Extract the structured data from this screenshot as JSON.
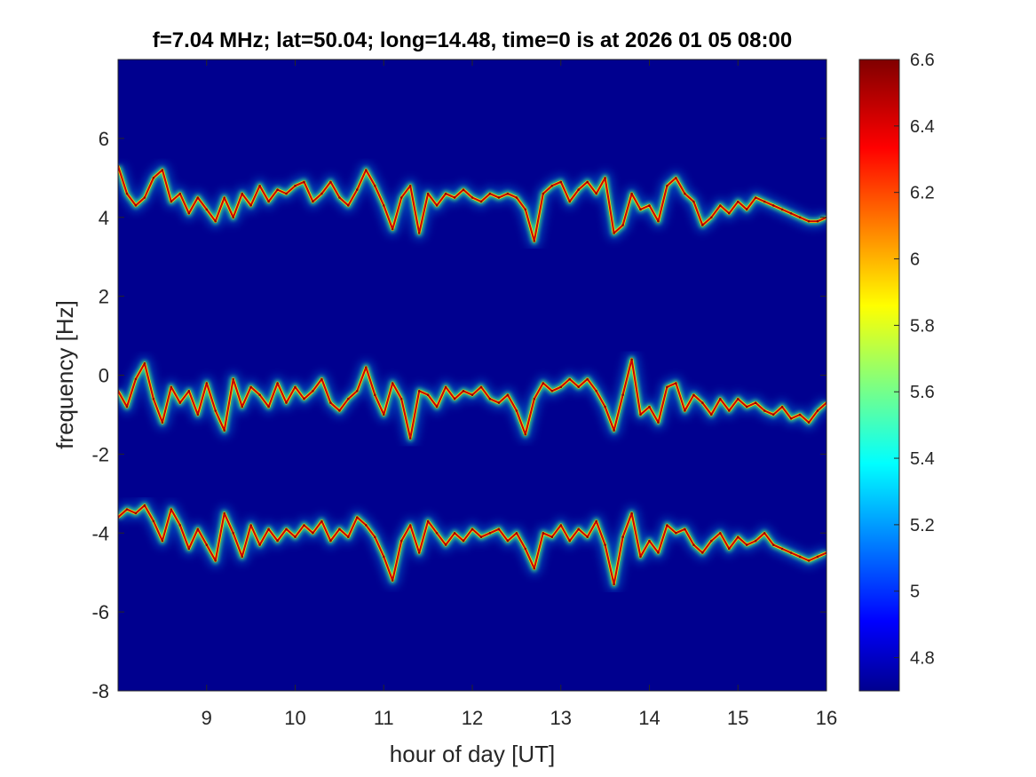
{
  "chart_data": {
    "type": "heatmap",
    "title": "f=7.04 MHz;  lat=50.04; long=14.48, time=0 is at 2026 01 05 08:00",
    "xlabel": "hour of day [UT]",
    "ylabel": "frequency [Hz]",
    "xlim": [
      8,
      16
    ],
    "ylim": [
      -8,
      8
    ],
    "x_ticks": [
      9,
      10,
      11,
      12,
      13,
      14,
      15,
      16
    ],
    "y_ticks": [
      -8,
      -6,
      -4,
      -2,
      0,
      2,
      4,
      6
    ],
    "colormap": "jet",
    "background_color": "#00008f",
    "grid": false,
    "colorbar": {
      "range": [
        4.7,
        6.6
      ],
      "ticks": [
        4.8,
        5,
        5.2,
        5.4,
        5.6,
        5.8,
        6,
        6.2,
        6.4,
        6.6
      ],
      "tick_labels": [
        "4.8",
        "5",
        "5.2",
        "5.4",
        "5.6",
        "5.8",
        "6",
        "6.2",
        "6.4",
        "6.6"
      ]
    },
    "series": [
      {
        "x": [
          8.0,
          8.1,
          8.2,
          8.3,
          8.4,
          8.5,
          8.6,
          8.7,
          8.8,
          8.9,
          9.0,
          9.1,
          9.2,
          9.3,
          9.4,
          9.5,
          9.6,
          9.7,
          9.8,
          9.9,
          10.0,
          10.1,
          10.2,
          10.3,
          10.4,
          10.5,
          10.6,
          10.7,
          10.8,
          10.9,
          11.0,
          11.1,
          11.2,
          11.3,
          11.4,
          11.5,
          11.6,
          11.7,
          11.8,
          11.9,
          12.0,
          12.1,
          12.2,
          12.3,
          12.4,
          12.5,
          12.6,
          12.7,
          12.8,
          12.9,
          13.0,
          13.1,
          13.2,
          13.3,
          13.4,
          13.5,
          13.6,
          13.7,
          13.8,
          13.9,
          14.0,
          14.1,
          14.2,
          14.3,
          14.4,
          14.5,
          14.6,
          14.7,
          14.8,
          14.9,
          15.0,
          15.1,
          15.2,
          15.3,
          15.4,
          15.5,
          15.6,
          15.7,
          15.8,
          15.9,
          16.0
        ],
        "y": [
          5.3,
          4.6,
          4.3,
          4.5,
          5.0,
          5.2,
          4.4,
          4.6,
          4.1,
          4.5,
          4.2,
          3.9,
          4.5,
          4.0,
          4.6,
          4.3,
          4.8,
          4.4,
          4.7,
          4.6,
          4.8,
          4.9,
          4.4,
          4.6,
          4.9,
          4.5,
          4.3,
          4.7,
          5.2,
          4.8,
          4.3,
          3.7,
          4.5,
          4.8,
          3.6,
          4.6,
          4.3,
          4.6,
          4.5,
          4.7,
          4.5,
          4.4,
          4.6,
          4.5,
          4.6,
          4.5,
          4.2,
          3.4,
          4.6,
          4.8,
          4.9,
          4.4,
          4.7,
          4.9,
          4.6,
          5.0,
          3.6,
          3.8,
          4.6,
          4.2,
          4.3,
          3.9,
          4.8,
          5.0,
          4.6,
          4.4,
          3.8,
          4.0,
          4.3,
          4.1,
          4.4,
          4.2,
          4.5,
          4.4,
          4.3,
          4.2,
          4.1,
          4.0,
          3.9,
          3.9,
          4.0
        ]
      },
      {
        "x": [
          8.0,
          8.1,
          8.2,
          8.3,
          8.4,
          8.5,
          8.6,
          8.7,
          8.8,
          8.9,
          9.0,
          9.1,
          9.2,
          9.3,
          9.4,
          9.5,
          9.6,
          9.7,
          9.8,
          9.9,
          10.0,
          10.1,
          10.2,
          10.3,
          10.4,
          10.5,
          10.6,
          10.7,
          10.8,
          10.9,
          11.0,
          11.1,
          11.2,
          11.3,
          11.4,
          11.5,
          11.6,
          11.7,
          11.8,
          11.9,
          12.0,
          12.1,
          12.2,
          12.3,
          12.4,
          12.5,
          12.6,
          12.7,
          12.8,
          12.9,
          13.0,
          13.1,
          13.2,
          13.3,
          13.4,
          13.5,
          13.6,
          13.7,
          13.8,
          13.9,
          14.0,
          14.1,
          14.2,
          14.3,
          14.4,
          14.5,
          14.6,
          14.7,
          14.8,
          14.9,
          15.0,
          15.1,
          15.2,
          15.3,
          15.4,
          15.5,
          15.6,
          15.7,
          15.8,
          15.9,
          16.0
        ],
        "y": [
          -0.4,
          -0.8,
          -0.1,
          0.3,
          -0.6,
          -1.2,
          -0.3,
          -0.7,
          -0.4,
          -1.0,
          -0.2,
          -0.9,
          -1.4,
          -0.1,
          -0.8,
          -0.3,
          -0.5,
          -0.8,
          -0.2,
          -0.7,
          -0.3,
          -0.6,
          -0.4,
          -0.1,
          -0.7,
          -0.9,
          -0.6,
          -0.4,
          0.2,
          -0.5,
          -1.0,
          -0.2,
          -0.6,
          -1.6,
          -0.4,
          -0.5,
          -0.8,
          -0.3,
          -0.6,
          -0.4,
          -0.5,
          -0.3,
          -0.6,
          -0.7,
          -0.5,
          -0.9,
          -1.5,
          -0.6,
          -0.2,
          -0.4,
          -0.3,
          -0.1,
          -0.3,
          -0.1,
          -0.4,
          -0.8,
          -1.4,
          -0.5,
          0.4,
          -1.0,
          -0.8,
          -1.2,
          -0.3,
          -0.2,
          -0.9,
          -0.5,
          -0.7,
          -1.0,
          -0.6,
          -0.9,
          -0.6,
          -0.8,
          -0.7,
          -0.9,
          -1.0,
          -0.8,
          -1.1,
          -1.0,
          -1.2,
          -0.9,
          -0.7
        ]
      },
      {
        "x": [
          8.0,
          8.1,
          8.2,
          8.3,
          8.4,
          8.5,
          8.6,
          8.7,
          8.8,
          8.9,
          9.0,
          9.1,
          9.2,
          9.3,
          9.4,
          9.5,
          9.6,
          9.7,
          9.8,
          9.9,
          10.0,
          10.1,
          10.2,
          10.3,
          10.4,
          10.5,
          10.6,
          10.7,
          10.8,
          10.9,
          11.0,
          11.1,
          11.2,
          11.3,
          11.4,
          11.5,
          11.6,
          11.7,
          11.8,
          11.9,
          12.0,
          12.1,
          12.2,
          12.3,
          12.4,
          12.5,
          12.6,
          12.7,
          12.8,
          12.9,
          13.0,
          13.1,
          13.2,
          13.3,
          13.4,
          13.5,
          13.6,
          13.7,
          13.8,
          13.9,
          14.0,
          14.1,
          14.2,
          14.3,
          14.4,
          14.5,
          14.6,
          14.7,
          14.8,
          14.9,
          15.0,
          15.1,
          15.2,
          15.3,
          15.4,
          15.5,
          15.6,
          15.7,
          15.8,
          15.9,
          16.0
        ],
        "y": [
          -3.6,
          -3.4,
          -3.5,
          -3.3,
          -3.7,
          -4.2,
          -3.4,
          -3.8,
          -4.4,
          -3.9,
          -4.3,
          -4.7,
          -3.5,
          -4.0,
          -4.6,
          -3.8,
          -4.3,
          -3.9,
          -4.2,
          -3.9,
          -4.1,
          -3.8,
          -4.0,
          -3.7,
          -4.2,
          -3.9,
          -4.1,
          -3.6,
          -3.8,
          -4.1,
          -4.6,
          -5.2,
          -4.2,
          -3.8,
          -4.5,
          -3.7,
          -4.0,
          -4.3,
          -4.0,
          -4.2,
          -3.9,
          -4.1,
          -4.0,
          -3.9,
          -4.2,
          -4.0,
          -4.4,
          -4.9,
          -4.0,
          -4.1,
          -3.8,
          -4.2,
          -3.9,
          -4.1,
          -3.7,
          -4.3,
          -5.3,
          -4.1,
          -3.5,
          -4.6,
          -4.2,
          -4.5,
          -3.8,
          -4.0,
          -3.9,
          -4.3,
          -4.5,
          -4.2,
          -4.0,
          -4.4,
          -4.1,
          -4.3,
          -4.2,
          -4.0,
          -4.3,
          -4.4,
          -4.5,
          -4.6,
          -4.7,
          -4.6,
          -4.5
        ]
      }
    ]
  }
}
